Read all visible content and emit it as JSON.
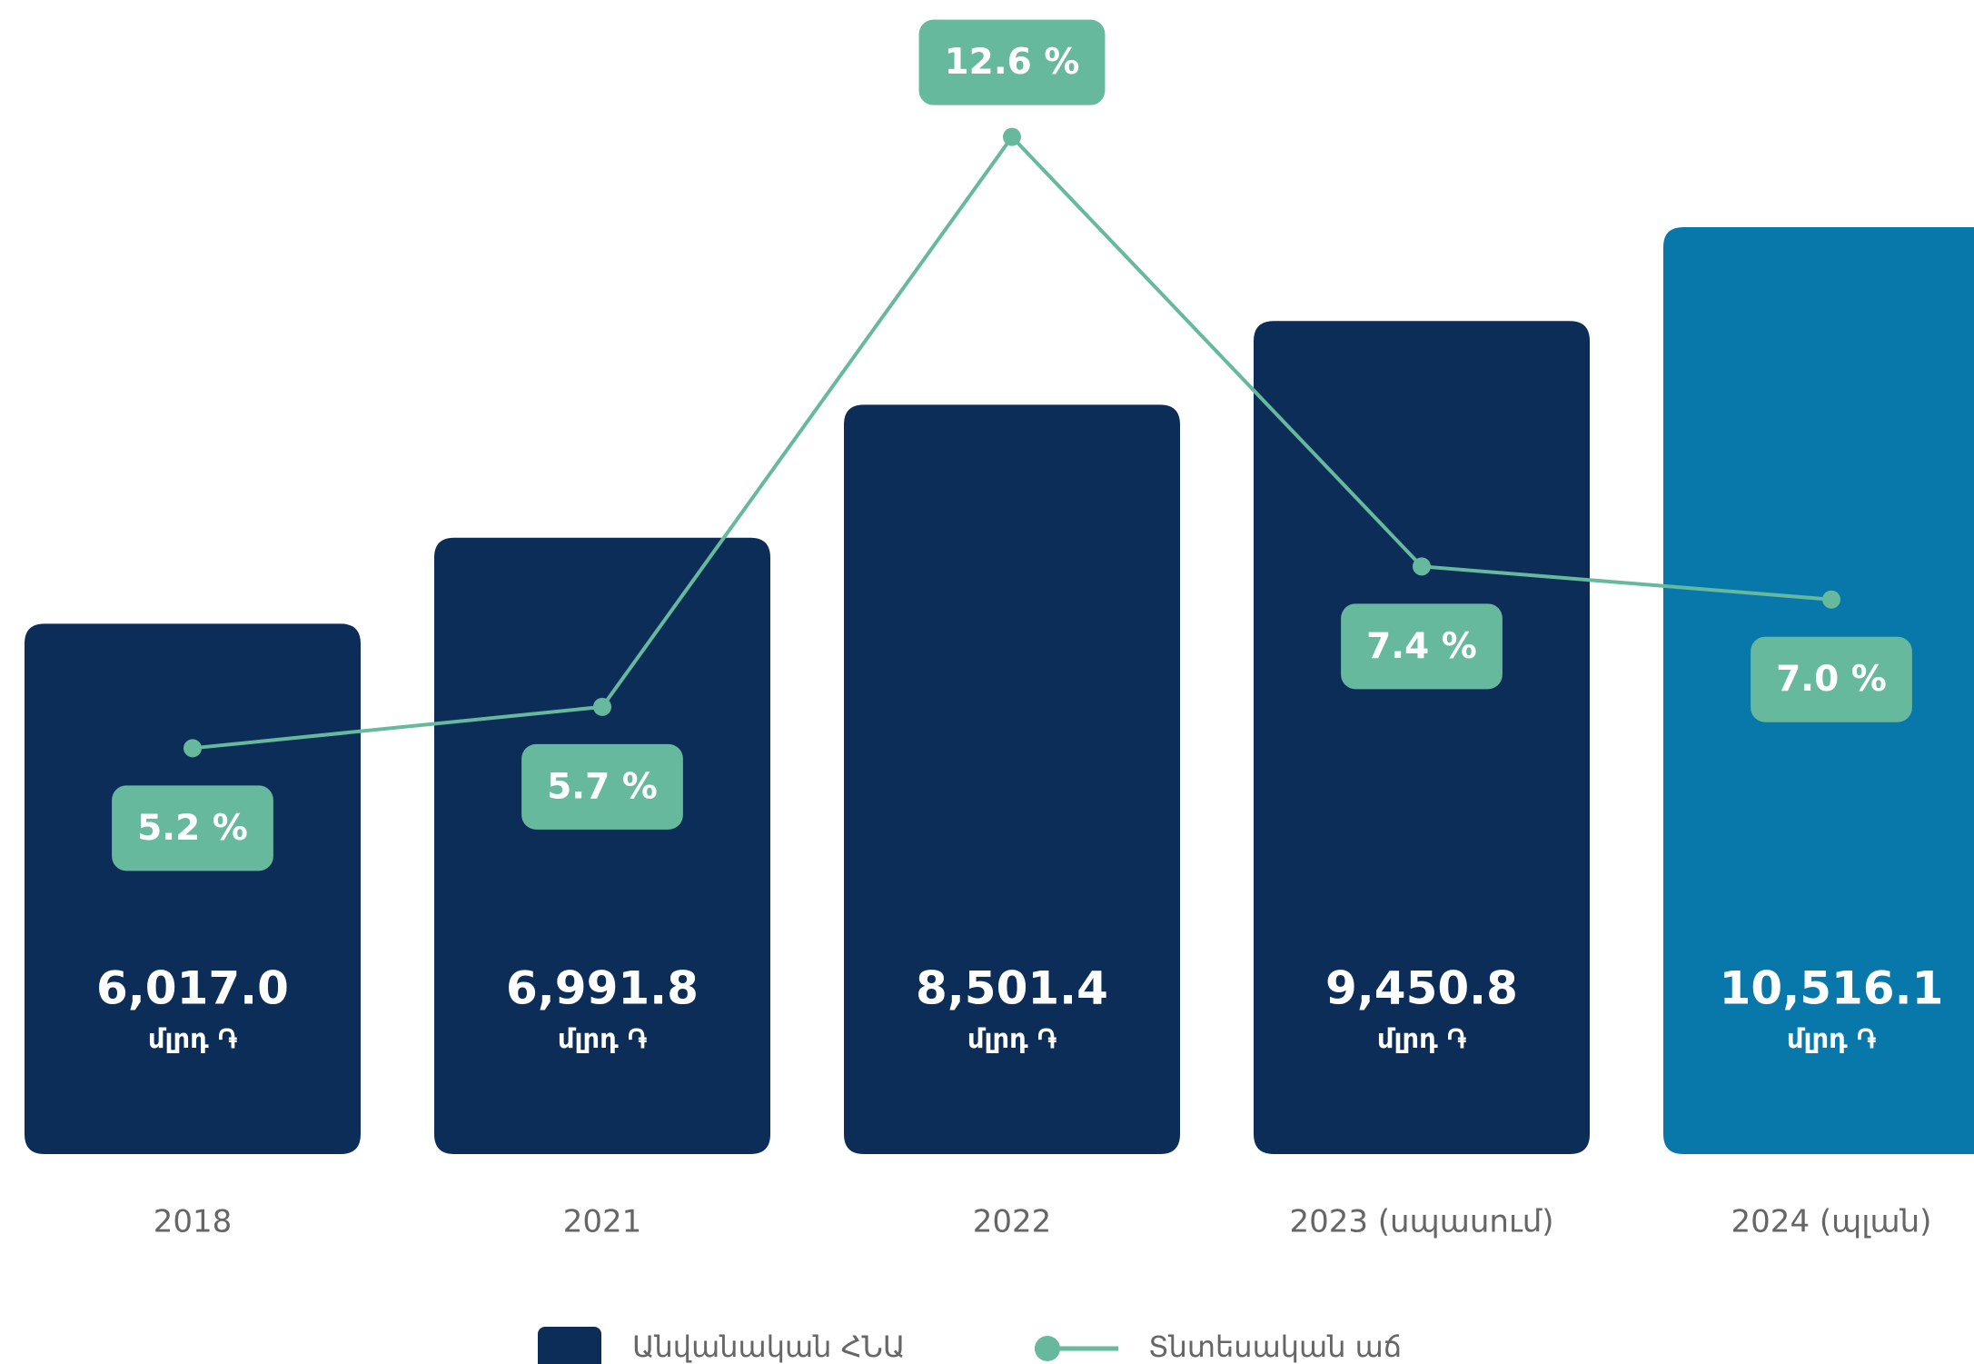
{
  "chart_data": {
    "type": "bar",
    "categories": [
      "2018",
      "2021",
      "2022",
      "2023 (սպասում)",
      "2024 (պլան)"
    ],
    "series": [
      {
        "name": "Անվանական ՀՆԱ",
        "type": "bar",
        "colors": [
          "#0c2d57",
          "#0c2d57",
          "#0c2d57",
          "#0c2d57",
          "#0878ab"
        ],
        "values": [
          6017.0,
          6991.8,
          8501.4,
          9450.8,
          10516.1
        ],
        "value_labels": [
          "6,017.0",
          "6,991.8",
          "8,501.4",
          "9,450.8",
          "10,516.1"
        ],
        "unit_label": "մլրդ ֏"
      },
      {
        "name": "Տնտեսական աճ",
        "type": "line",
        "color": "#67b99e",
        "values": [
          5.2,
          5.7,
          12.6,
          7.4,
          7.0
        ],
        "value_labels": [
          "5.2 %",
          "5.7 %",
          "12.6 %",
          "7.4 %",
          "7.0 %"
        ]
      }
    ]
  }
}
